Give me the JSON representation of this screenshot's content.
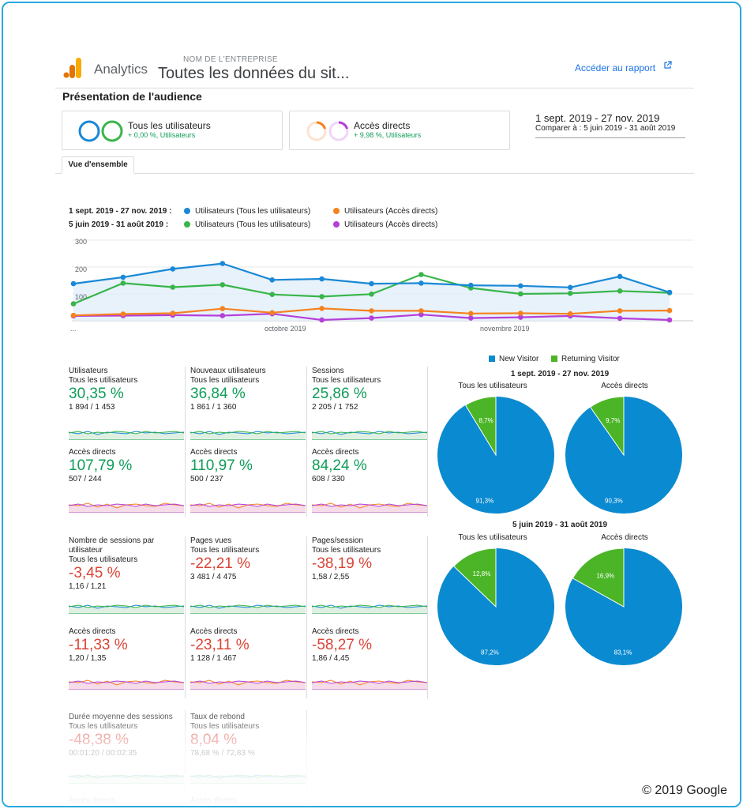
{
  "header": {
    "app_name": "Analytics",
    "company_label": "NOM DE L'ENTREPRISE",
    "property_name": "Toutes les données du sit...",
    "report_link": "Accéder au rapport"
  },
  "page_title": "Présentation de l'audience",
  "segments": [
    {
      "name": "Tous les utilisateurs",
      "sub": "+ 0,00 %, Utilisateurs"
    },
    {
      "name": "Accès directs",
      "sub": "+ 9,98 %, Utilisateurs"
    }
  ],
  "date_range": {
    "main": "1 sept. 2019 - 27 nov. 2019",
    "compare": "Comparer à : 5 juin 2019 - 31 août 2019"
  },
  "tab_overview": "Vue d'ensemble",
  "colors": {
    "blue": "#1a88d6",
    "orange": "#f5821f",
    "green": "#39b54a",
    "purple": "#b53fd9",
    "pie_new": "#0a8ad0",
    "pie_returning": "#4cb527"
  },
  "chart_data": [
    {
      "type": "line",
      "legend": [
        {
          "date": "1 sept. 2019 - 27 nov. 2019 :",
          "items": [
            "Utilisateurs (Tous les utilisateurs)",
            "Utilisateurs (Accès directs)"
          ]
        },
        {
          "date": "5 juin 2019 - 31 août 2019 :",
          "items": [
            "Utilisateurs (Tous les utilisateurs)",
            "Utilisateurs (Accès directs)"
          ]
        }
      ],
      "y_ticks": [
        "300",
        "200",
        "100"
      ],
      "x_ticks": [
        "...",
        "octobre 2019",
        "novembre 2019"
      ],
      "ylim": [
        0,
        300
      ],
      "series": [
        {
          "name": "Utilisateurs (Tous les utilisateurs)",
          "period": "current",
          "color": "blue",
          "values": [
            138,
            162,
            193,
            213,
            152,
            156,
            138,
            140,
            132,
            130,
            124,
            165,
            106
          ]
        },
        {
          "name": "Utilisateurs (Accès directs)",
          "period": "current",
          "color": "orange",
          "values": [
            20,
            25,
            28,
            45,
            30,
            46,
            37,
            37,
            27,
            28,
            26,
            37,
            38
          ]
        },
        {
          "name": "Utilisateurs (Tous les utilisateurs)",
          "period": "previous",
          "color": "green",
          "values": [
            63,
            140,
            125,
            134,
            98,
            90,
            99,
            172,
            122,
            100,
            102,
            111,
            104
          ]
        },
        {
          "name": "Utilisateurs (Accès directs)",
          "period": "previous",
          "color": "purple",
          "values": [
            18,
            19,
            21,
            19,
            26,
            3,
            10,
            23,
            10,
            13,
            18,
            9,
            3
          ]
        }
      ]
    },
    {
      "type": "pie",
      "legend": [
        "New Visitor",
        "Returning Visitor"
      ],
      "groups": [
        {
          "date": "1 sept. 2019 - 27 nov. 2019",
          "pies": [
            {
              "title": "Tous les utilisateurs",
              "slices": [
                {
                  "label": "New Visitor",
                  "value": 91.3,
                  "text": "91,3%"
                },
                {
                  "label": "Returning Visitor",
                  "value": 8.7,
                  "text": "8,7%"
                }
              ]
            },
            {
              "title": "Accès directs",
              "slices": [
                {
                  "label": "New Visitor",
                  "value": 90.3,
                  "text": "90,3%"
                },
                {
                  "label": "Returning Visitor",
                  "value": 9.7,
                  "text": "9,7%"
                }
              ]
            }
          ]
        },
        {
          "date": "5 juin 2019 - 31 août 2019",
          "pies": [
            {
              "title": "Tous les utilisateurs",
              "slices": [
                {
                  "label": "New Visitor",
                  "value": 87.2,
                  "text": "87,2%"
                },
                {
                  "label": "Returning Visitor",
                  "value": 12.8,
                  "text": "12,8%"
                }
              ]
            },
            {
              "title": "Accès directs",
              "slices": [
                {
                  "label": "New Visitor",
                  "value": 83.1,
                  "text": "83,1%"
                },
                {
                  "label": "Returning Visitor",
                  "value": 16.9,
                  "text": "16,9%"
                }
              ]
            }
          ]
        }
      ]
    }
  ],
  "metrics": [
    {
      "name": "Utilisateurs",
      "all": {
        "seg": "Tous les utilisateurs",
        "pct": "30,35 %",
        "val": "1 894 / 1 453",
        "trend": "pos"
      },
      "direct": {
        "seg": "Accès directs",
        "pct": "107,79 %",
        "val": "507 / 244",
        "trend": "pos"
      }
    },
    {
      "name": "Nouveaux utilisateurs",
      "all": {
        "seg": "Tous les utilisateurs",
        "pct": "36,84 %",
        "val": "1 861 / 1 360",
        "trend": "pos"
      },
      "direct": {
        "seg": "Accès directs",
        "pct": "110,97 %",
        "val": "500 / 237",
        "trend": "pos"
      }
    },
    {
      "name": "Sessions",
      "all": {
        "seg": "Tous les utilisateurs",
        "pct": "25,86 %",
        "val": "2 205 / 1 752",
        "trend": "pos"
      },
      "direct": {
        "seg": "Accès directs",
        "pct": "84,24 %",
        "val": "608 / 330",
        "trend": "pos"
      }
    },
    {
      "name": "Nombre de sessions par utilisateur",
      "all": {
        "seg": "Tous les utilisateurs",
        "pct": "-3,45 %",
        "val": "1,16 / 1,21",
        "trend": "neg"
      },
      "direct": {
        "seg": "Accès directs",
        "pct": "-11,33 %",
        "val": "1,20 / 1,35",
        "trend": "neg"
      }
    },
    {
      "name": "Pages vues",
      "all": {
        "seg": "Tous les utilisateurs",
        "pct": "-22,21 %",
        "val": "3 481 / 4 475",
        "trend": "neg"
      },
      "direct": {
        "seg": "Accès directs",
        "pct": "-23,11 %",
        "val": "1 128 / 1 467",
        "trend": "neg"
      }
    },
    {
      "name": "Pages/session",
      "all": {
        "seg": "Tous les utilisateurs",
        "pct": "-38,19 %",
        "val": "1,58 / 2,55",
        "trend": "neg"
      },
      "direct": {
        "seg": "Accès directs",
        "pct": "-58,27 %",
        "val": "1,86 / 4,45",
        "trend": "neg"
      }
    },
    {
      "name": "Durée moyenne des sessions",
      "all": {
        "seg": "Tous les utilisateurs",
        "pct": "-48,38 %",
        "val": "00:01:20 / 00:02:35",
        "trend": "neg"
      },
      "direct": {
        "seg": "Accès directs",
        "pct": "",
        "val": "",
        "trend": "neg"
      }
    },
    {
      "name": "Taux de rebond",
      "all": {
        "seg": "Tous les utilisateurs",
        "pct": "8,04 %",
        "val": "78,68 % / 72,83 %",
        "trend": "neg"
      },
      "direct": {
        "seg": "Accès directs",
        "pct": "",
        "val": "",
        "trend": "neg"
      }
    }
  ],
  "footer": {
    "copyright": "© 2019 Google"
  }
}
